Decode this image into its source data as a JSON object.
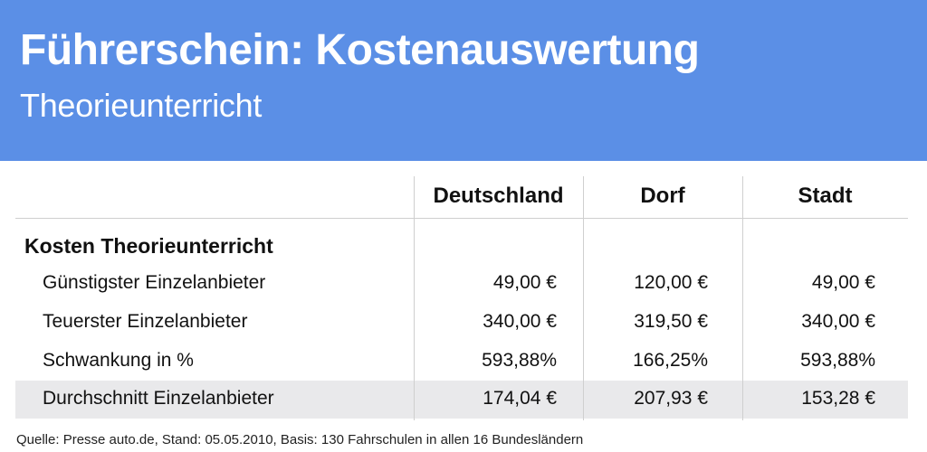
{
  "title": "Führerschein: Kostenauswertung",
  "subtitle": "Theorieunterricht",
  "source": "Quelle: Presse auto.de, Stand: 05.05.2010, Basis: 130 Fahrschulen in allen 16 Bundesländern",
  "chart_data": {
    "type": "table",
    "columns": [
      "Deutschland",
      "Dorf",
      "Stadt"
    ],
    "section": "Kosten Theorieunterricht",
    "rows": [
      {
        "label": "Günstigster Einzelanbieter",
        "values": [
          "49,00 €",
          "120,00 €",
          "49,00 €"
        ],
        "highlight": false
      },
      {
        "label": "Teuerster Einzelanbieter",
        "values": [
          "340,00 €",
          "319,50 €",
          "340,00 €"
        ],
        "highlight": false
      },
      {
        "label": "Schwankung in %",
        "values": [
          "593,88%",
          "166,25%",
          "593,88%"
        ],
        "highlight": false
      },
      {
        "label": "Durchschnitt Einzelanbieter",
        "values": [
          "174,04 €",
          "207,93 €",
          "153,28 €"
        ],
        "highlight": true
      }
    ]
  }
}
